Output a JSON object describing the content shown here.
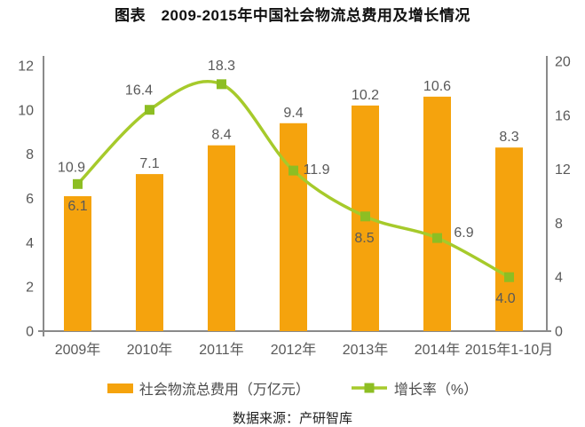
{
  "title": "图表　2009-2015年中国社会物流总费用及增长情况",
  "source": "数据来源：产研智库",
  "chart_data": {
    "type": "combo-bar-line",
    "categories": [
      "2009年",
      "2010年",
      "2011年",
      "2012年",
      "2013年",
      "2014年",
      "2015年1-10月"
    ],
    "series": [
      {
        "name": "社会物流总费用（万亿元）",
        "type": "bar",
        "axis": "left",
        "color": "#F5A30D",
        "values": [
          6.1,
          7.1,
          8.4,
          9.4,
          10.2,
          10.6,
          8.3
        ]
      },
      {
        "name": "增长率（%）",
        "type": "line",
        "axis": "right",
        "color": "#A6CA2B",
        "marker_color": "#8DBE23",
        "values": [
          10.9,
          16.4,
          18.3,
          11.9,
          8.5,
          6.9,
          4.0
        ]
      }
    ],
    "left_axis": {
      "ticks": [
        0,
        2,
        4,
        6,
        8,
        10,
        12
      ],
      "range": [
        0,
        12
      ]
    },
    "right_axis": {
      "ticks": [
        0,
        4,
        8,
        12,
        16,
        20
      ],
      "range": [
        0,
        20
      ]
    },
    "grid": false,
    "legend_position": "bottom",
    "colors": {
      "axis_line": "#8A8A8A",
      "tick_label": "#595959",
      "data_label": "#595959",
      "background": "#FFFFFF"
    }
  }
}
